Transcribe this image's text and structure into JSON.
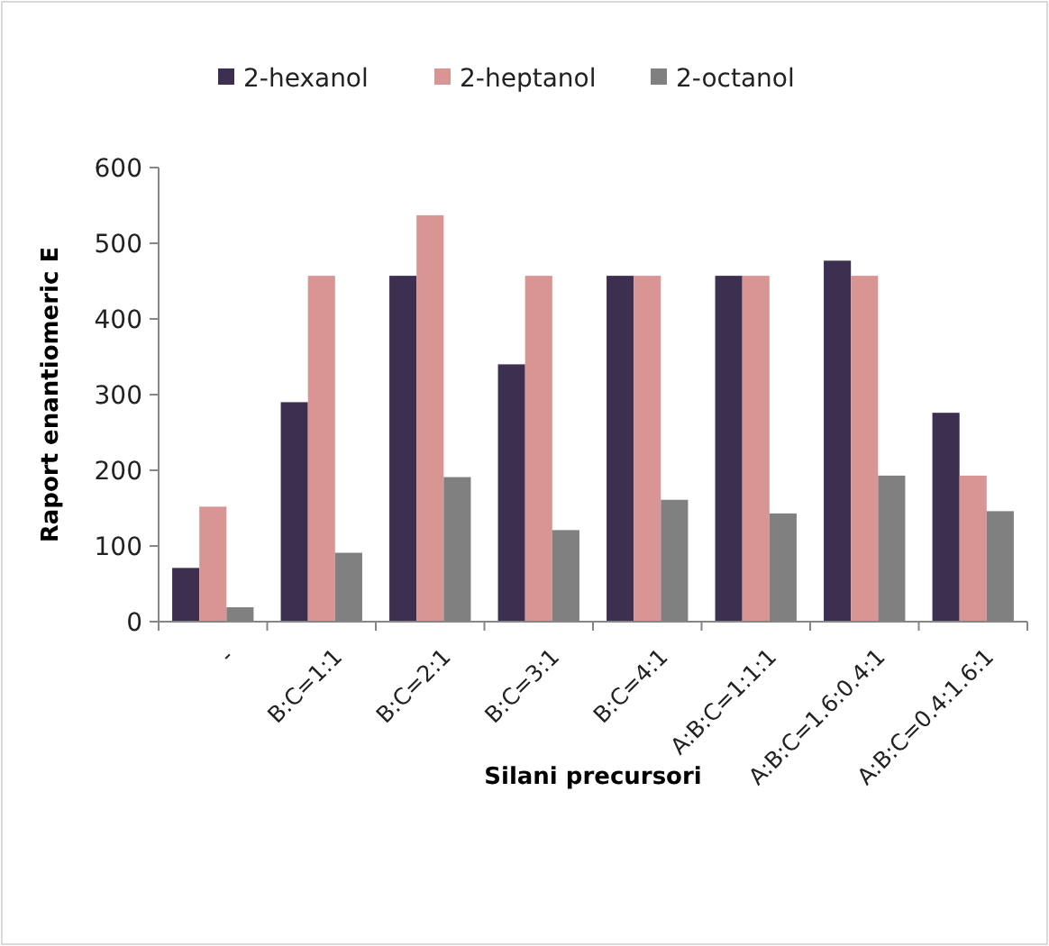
{
  "chart_data": {
    "type": "bar",
    "xlabel": "Silani precursori",
    "ylabel": "Raport enantiomeric E",
    "categories": [
      "-",
      "B:C=1:1",
      "B:C=2:1",
      "B:C=3:1",
      "B:C=4:1",
      "A:B:C=1:1:1",
      "A:B:C=1.6:0.4:1",
      "A:B:C=0.4:1.6:1"
    ],
    "series": [
      {
        "name": "2-hexanol",
        "color": "#3d2f50",
        "values": [
          71,
          290,
          457,
          340,
          457,
          457,
          477,
          276
        ]
      },
      {
        "name": "2-heptanol",
        "color": "#d99594",
        "values": [
          152,
          457,
          537,
          457,
          457,
          457,
          457,
          193
        ]
      },
      {
        "name": "2-octanol",
        "color": "#808080",
        "values": [
          19,
          91,
          191,
          121,
          161,
          143,
          193,
          146
        ]
      }
    ],
    "ylim": [
      0,
      600
    ],
    "yticks": [
      0,
      100,
      200,
      300,
      400,
      500,
      600
    ],
    "grid": false,
    "legend": "top"
  }
}
